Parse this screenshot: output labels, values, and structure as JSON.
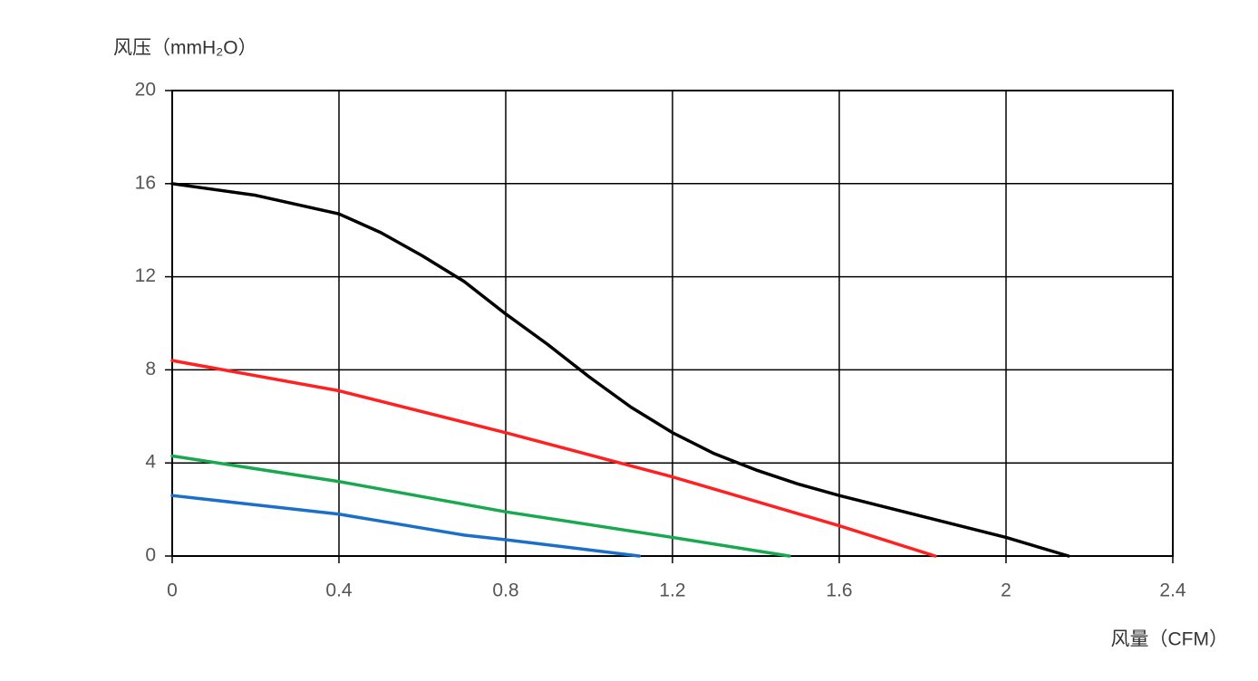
{
  "chart_data": {
    "type": "line",
    "y_label": "风压（mmH₂O）",
    "x_label": "风量（CFM）",
    "xlim": [
      0,
      2.4
    ],
    "xticks": [
      0,
      0.4,
      0.8,
      1.2,
      1.6,
      2,
      2.4
    ],
    "ylim": [
      0,
      20
    ],
    "yticks": [
      0,
      4,
      8,
      12,
      16,
      20
    ],
    "grid": true,
    "series": [
      {
        "color": "#000000",
        "x": [
          0,
          0.2,
          0.4,
          0.5,
          0.6,
          0.7,
          0.8,
          0.9,
          1.0,
          1.1,
          1.2,
          1.3,
          1.4,
          1.5,
          1.6,
          1.8,
          2.0,
          2.15
        ],
        "values": [
          16,
          15.5,
          14.7,
          13.9,
          12.9,
          11.8,
          10.4,
          9.1,
          7.7,
          6.4,
          5.3,
          4.4,
          3.7,
          3.1,
          2.6,
          1.7,
          0.8,
          0
        ]
      },
      {
        "color": "#ff2020",
        "x": [
          0,
          0.4,
          0.8,
          1.2,
          1.6,
          1.83
        ],
        "values": [
          8.4,
          7.1,
          5.3,
          3.4,
          1.3,
          0
        ]
      },
      {
        "color": "#18a850",
        "x": [
          0,
          0.4,
          0.8,
          1.2,
          1.48
        ],
        "values": [
          4.3,
          3.2,
          1.9,
          0.8,
          0
        ]
      },
      {
        "color": "#1a6fc8",
        "x": [
          0,
          0.4,
          0.5,
          0.7,
          0.8,
          1.12
        ],
        "values": [
          2.6,
          1.8,
          1.5,
          0.9,
          0.7,
          0
        ]
      }
    ]
  }
}
